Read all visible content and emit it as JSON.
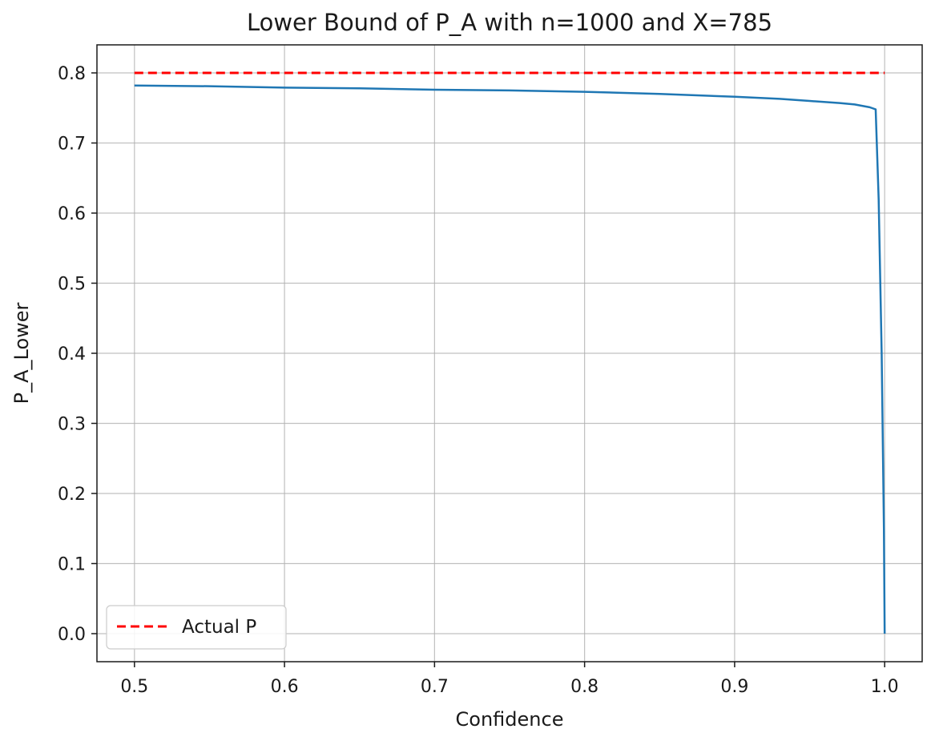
{
  "chart_data": {
    "type": "line",
    "title": "Lower Bound of P_A with n=1000 and X=785",
    "xlabel": "Confidence",
    "ylabel": "P_A_Lower",
    "xlim": [
      0.475,
      1.025
    ],
    "ylim": [
      -0.04,
      0.84
    ],
    "xticks": [
      0.5,
      0.6,
      0.7,
      0.8,
      0.9,
      1.0
    ],
    "xtick_labels": [
      "0.5",
      "0.6",
      "0.7",
      "0.8",
      "0.9",
      "1.0"
    ],
    "yticks": [
      0.0,
      0.1,
      0.2,
      0.3,
      0.4,
      0.5,
      0.6,
      0.7,
      0.8
    ],
    "ytick_labels": [
      "0.0",
      "0.1",
      "0.2",
      "0.3",
      "0.4",
      "0.5",
      "0.6",
      "0.7",
      "0.8"
    ],
    "grid": true,
    "legend_position": "lower-left",
    "series": [
      {
        "name": "",
        "color": "#1f77b4",
        "style": "solid",
        "x": [
          0.5,
          0.55,
          0.6,
          0.65,
          0.7,
          0.75,
          0.8,
          0.85,
          0.9,
          0.93,
          0.95,
          0.97,
          0.98,
          0.99,
          0.994,
          0.996,
          0.998,
          0.9995,
          1.0
        ],
        "y": [
          0.782,
          0.781,
          0.779,
          0.778,
          0.776,
          0.775,
          0.773,
          0.77,
          0.766,
          0.763,
          0.76,
          0.757,
          0.755,
          0.751,
          0.748,
          0.62,
          0.4,
          0.15,
          0.0
        ]
      },
      {
        "name": "Actual P",
        "color": "#ff0000",
        "style": "dashed",
        "x": [
          0.5,
          1.0
        ],
        "y": [
          0.8,
          0.8
        ]
      }
    ]
  }
}
